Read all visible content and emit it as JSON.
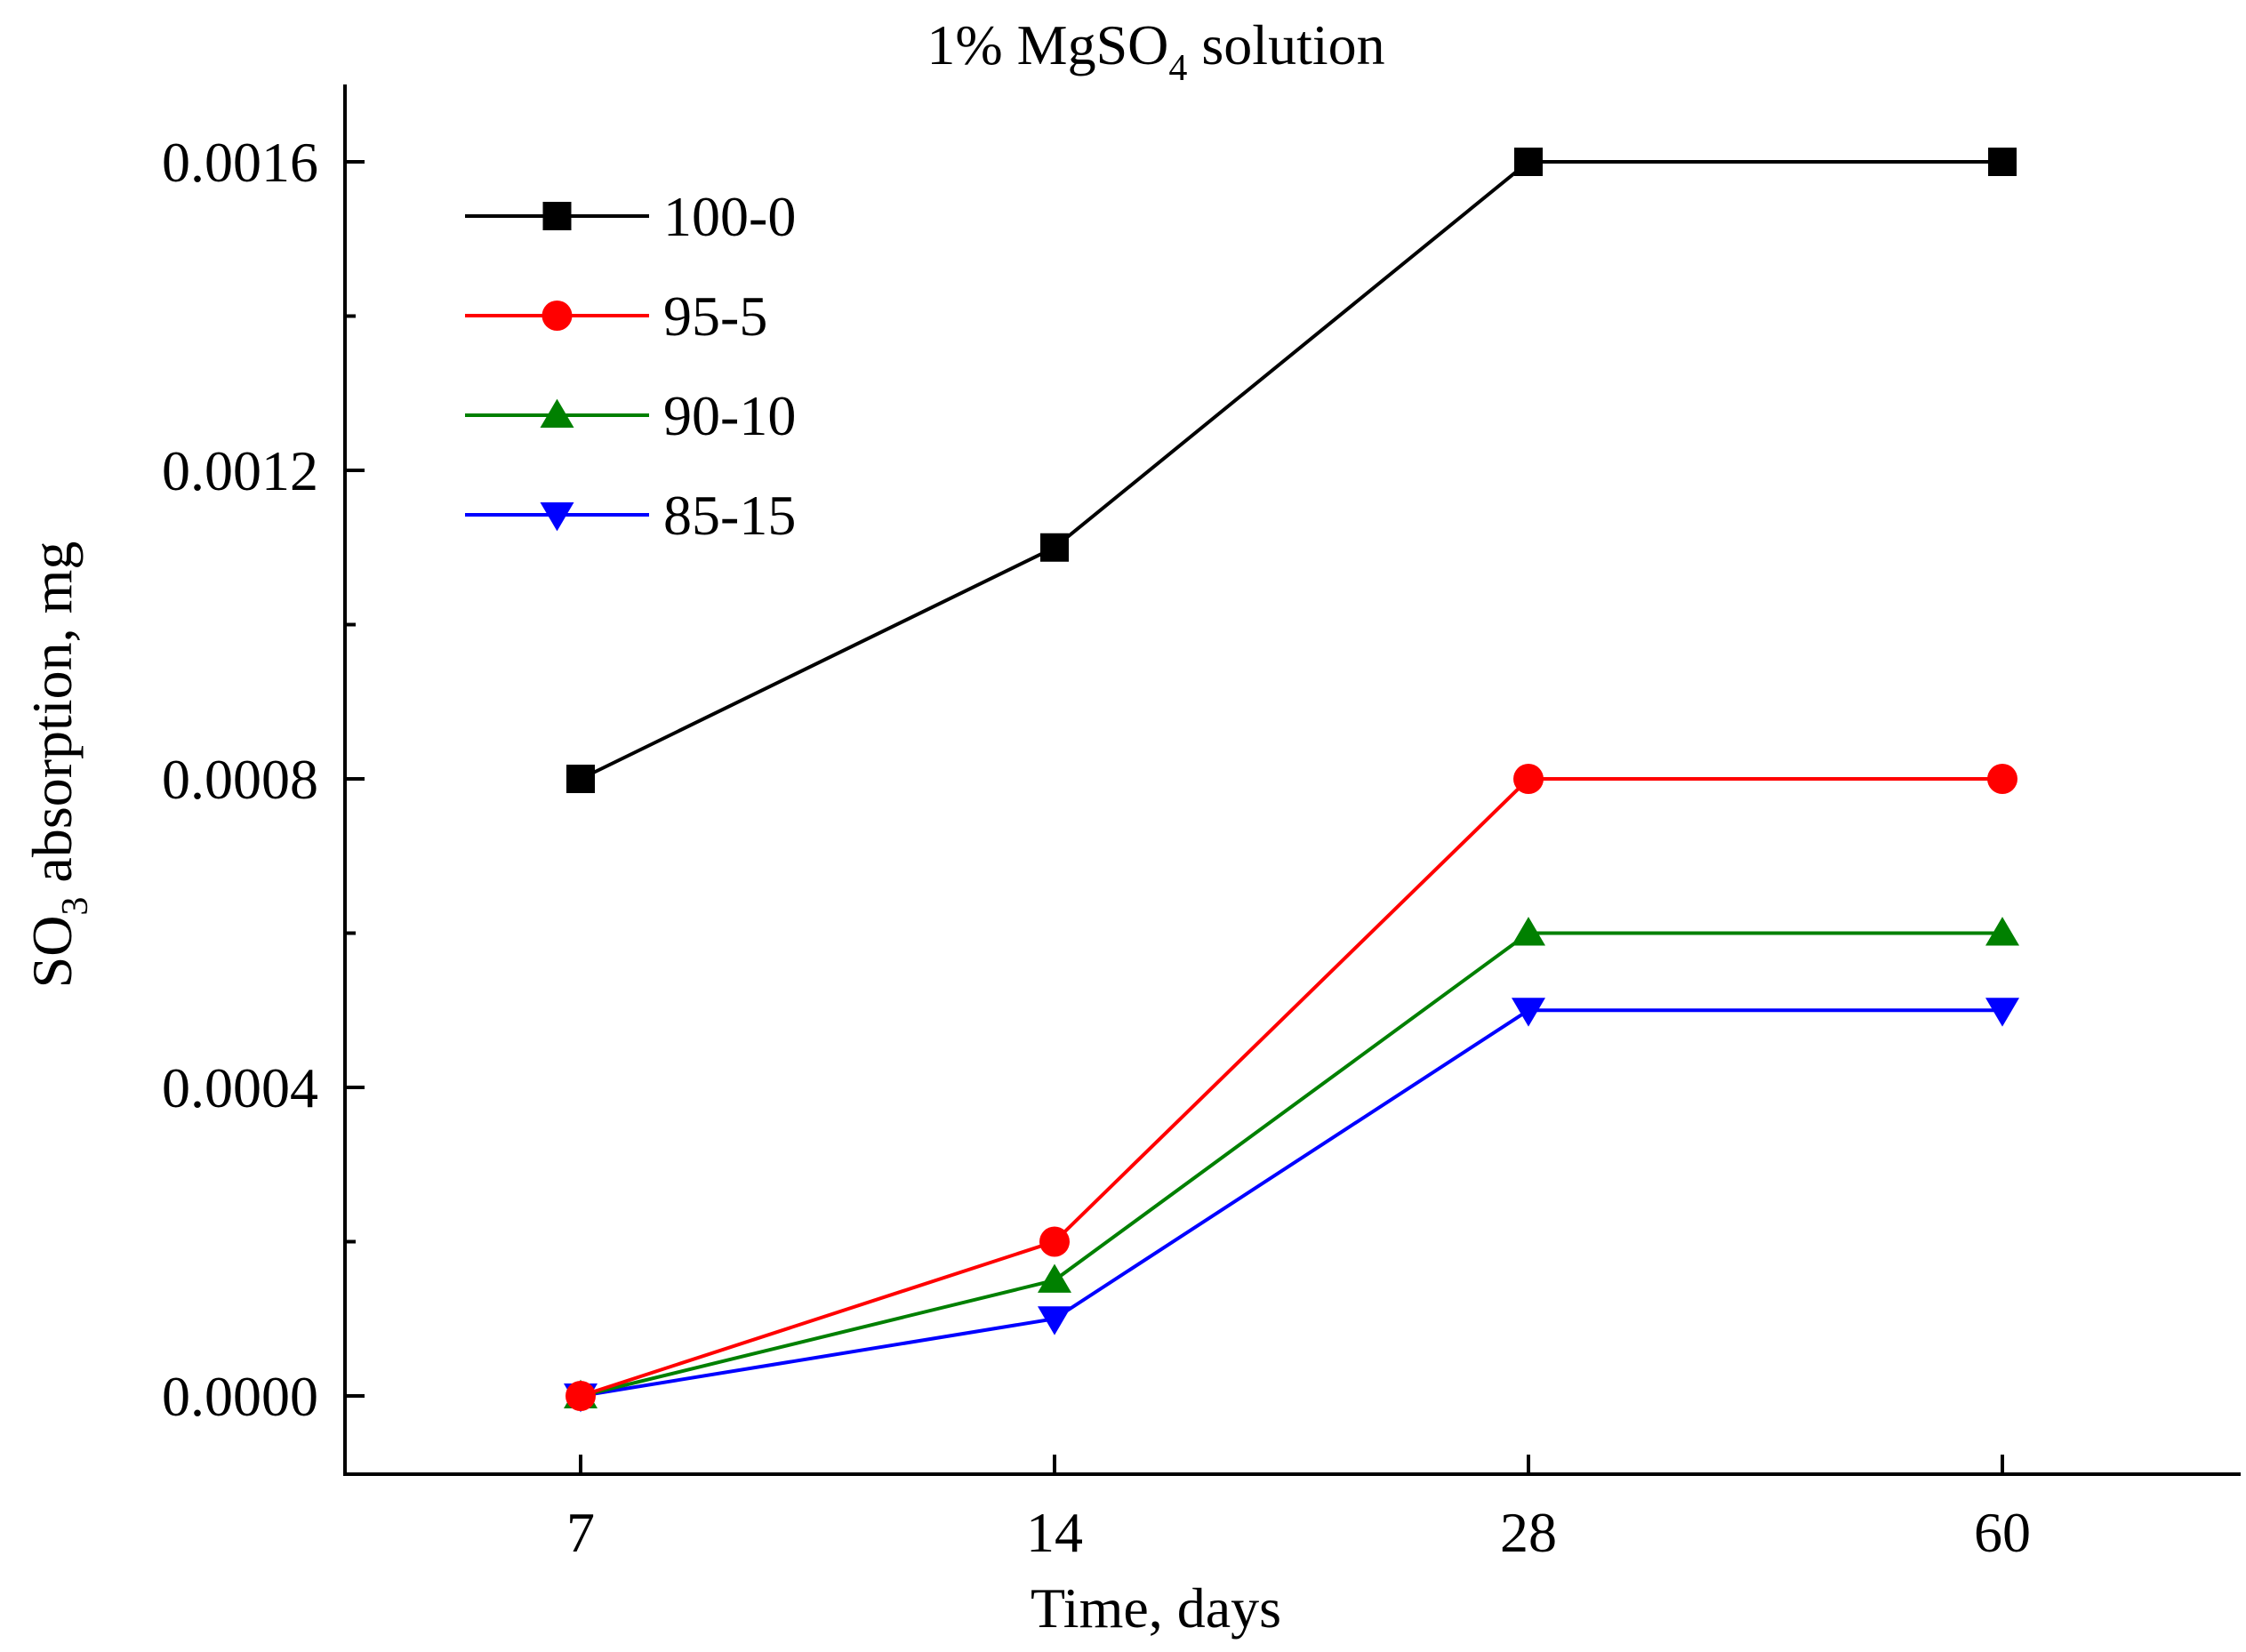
{
  "chart_data": {
    "type": "line",
    "title": "1% MgSO",
    "title_subscript": "4",
    "title_suffix": " solution",
    "xlabel": "Time, days",
    "ylabel": "SO",
    "ylabel_subscript": "3",
    "ylabel_suffix": " absorption, mg",
    "categories": [
      "7",
      "14",
      "28",
      "60"
    ],
    "ylim": [
      -0.0001,
      0.0017
    ],
    "yticks": [
      "0.0000",
      "0.0004",
      "0.0008",
      "0.0012",
      "0.0016"
    ],
    "ytick_values": [
      0,
      0.0004,
      0.0008,
      0.0012,
      0.0016
    ],
    "yminor_values": [
      0.0002,
      0.0006,
      0.001,
      0.0014
    ],
    "grid": false,
    "legend_position": "top-left",
    "series": [
      {
        "name": "100-0",
        "color": "#000000",
        "marker": "square",
        "values": [
          0.0008,
          0.0011,
          0.0016,
          0.0016
        ]
      },
      {
        "name": "95-5",
        "color": "#ff0000",
        "marker": "circle",
        "values": [
          0.0,
          0.0002,
          0.0008,
          0.0008
        ]
      },
      {
        "name": "90-10",
        "color": "#008000",
        "marker": "triangle-up",
        "values": [
          0.0,
          0.00015,
          0.0006,
          0.0006
        ]
      },
      {
        "name": "85-15",
        "color": "#0000ff",
        "marker": "triangle-down",
        "values": [
          0.0,
          0.0001,
          0.0005,
          0.0005
        ]
      }
    ]
  }
}
